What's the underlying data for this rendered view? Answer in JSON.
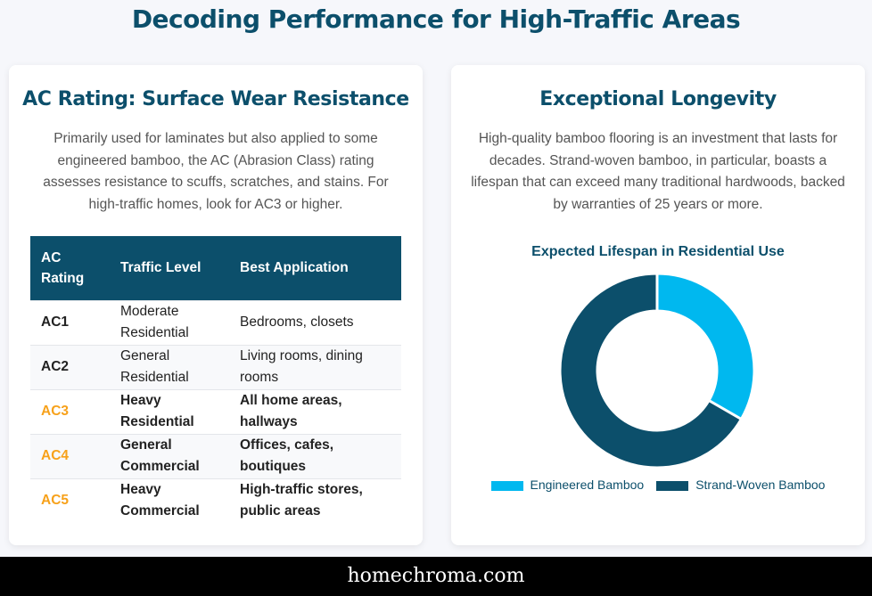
{
  "page": {
    "title": "Decoding Performance for High-Traffic Areas",
    "footer": "homechroma.com"
  },
  "left": {
    "heading": "AC Rating: Surface Wear Resistance",
    "body": "Primarily used for laminates but also applied to some engineered bamboo, the AC (Abrasion Class) rating assesses resistance to scuffs, scratches, and stains. For high-traffic homes, look for AC3 or higher.",
    "table": {
      "headers": [
        "AC Rating",
        "Traffic Level",
        "Best Application"
      ],
      "rows": [
        [
          "AC1",
          "Moderate Residential",
          "Bedrooms, closets"
        ],
        [
          "AC2",
          "General Residential",
          "Living rooms, dining rooms"
        ],
        [
          "AC3",
          "Heavy Residential",
          "All home areas, hallways"
        ],
        [
          "AC4",
          "General Commercial",
          "Offices, cafes, boutiques"
        ],
        [
          "AC5",
          "Heavy Commercial",
          "High-traffic stores, public areas"
        ]
      ]
    }
  },
  "right": {
    "heading": "Exceptional Longevity",
    "body": "High-quality bamboo flooring is an investment that lasts for decades. Strand-woven bamboo, in particular, boasts a lifespan that can exceed many traditional hardwoods, backed by warranties of 25 years or more."
  },
  "chart_data": {
    "type": "pie",
    "variant": "doughnut",
    "title": "Expected Lifespan in Residential Use",
    "categories": [
      "Engineered Bamboo",
      "Strand-Woven Bamboo"
    ],
    "values": [
      25,
      50
    ],
    "colors": [
      "#00b8ef",
      "#0c4f6b"
    ],
    "legend": "bottom"
  }
}
